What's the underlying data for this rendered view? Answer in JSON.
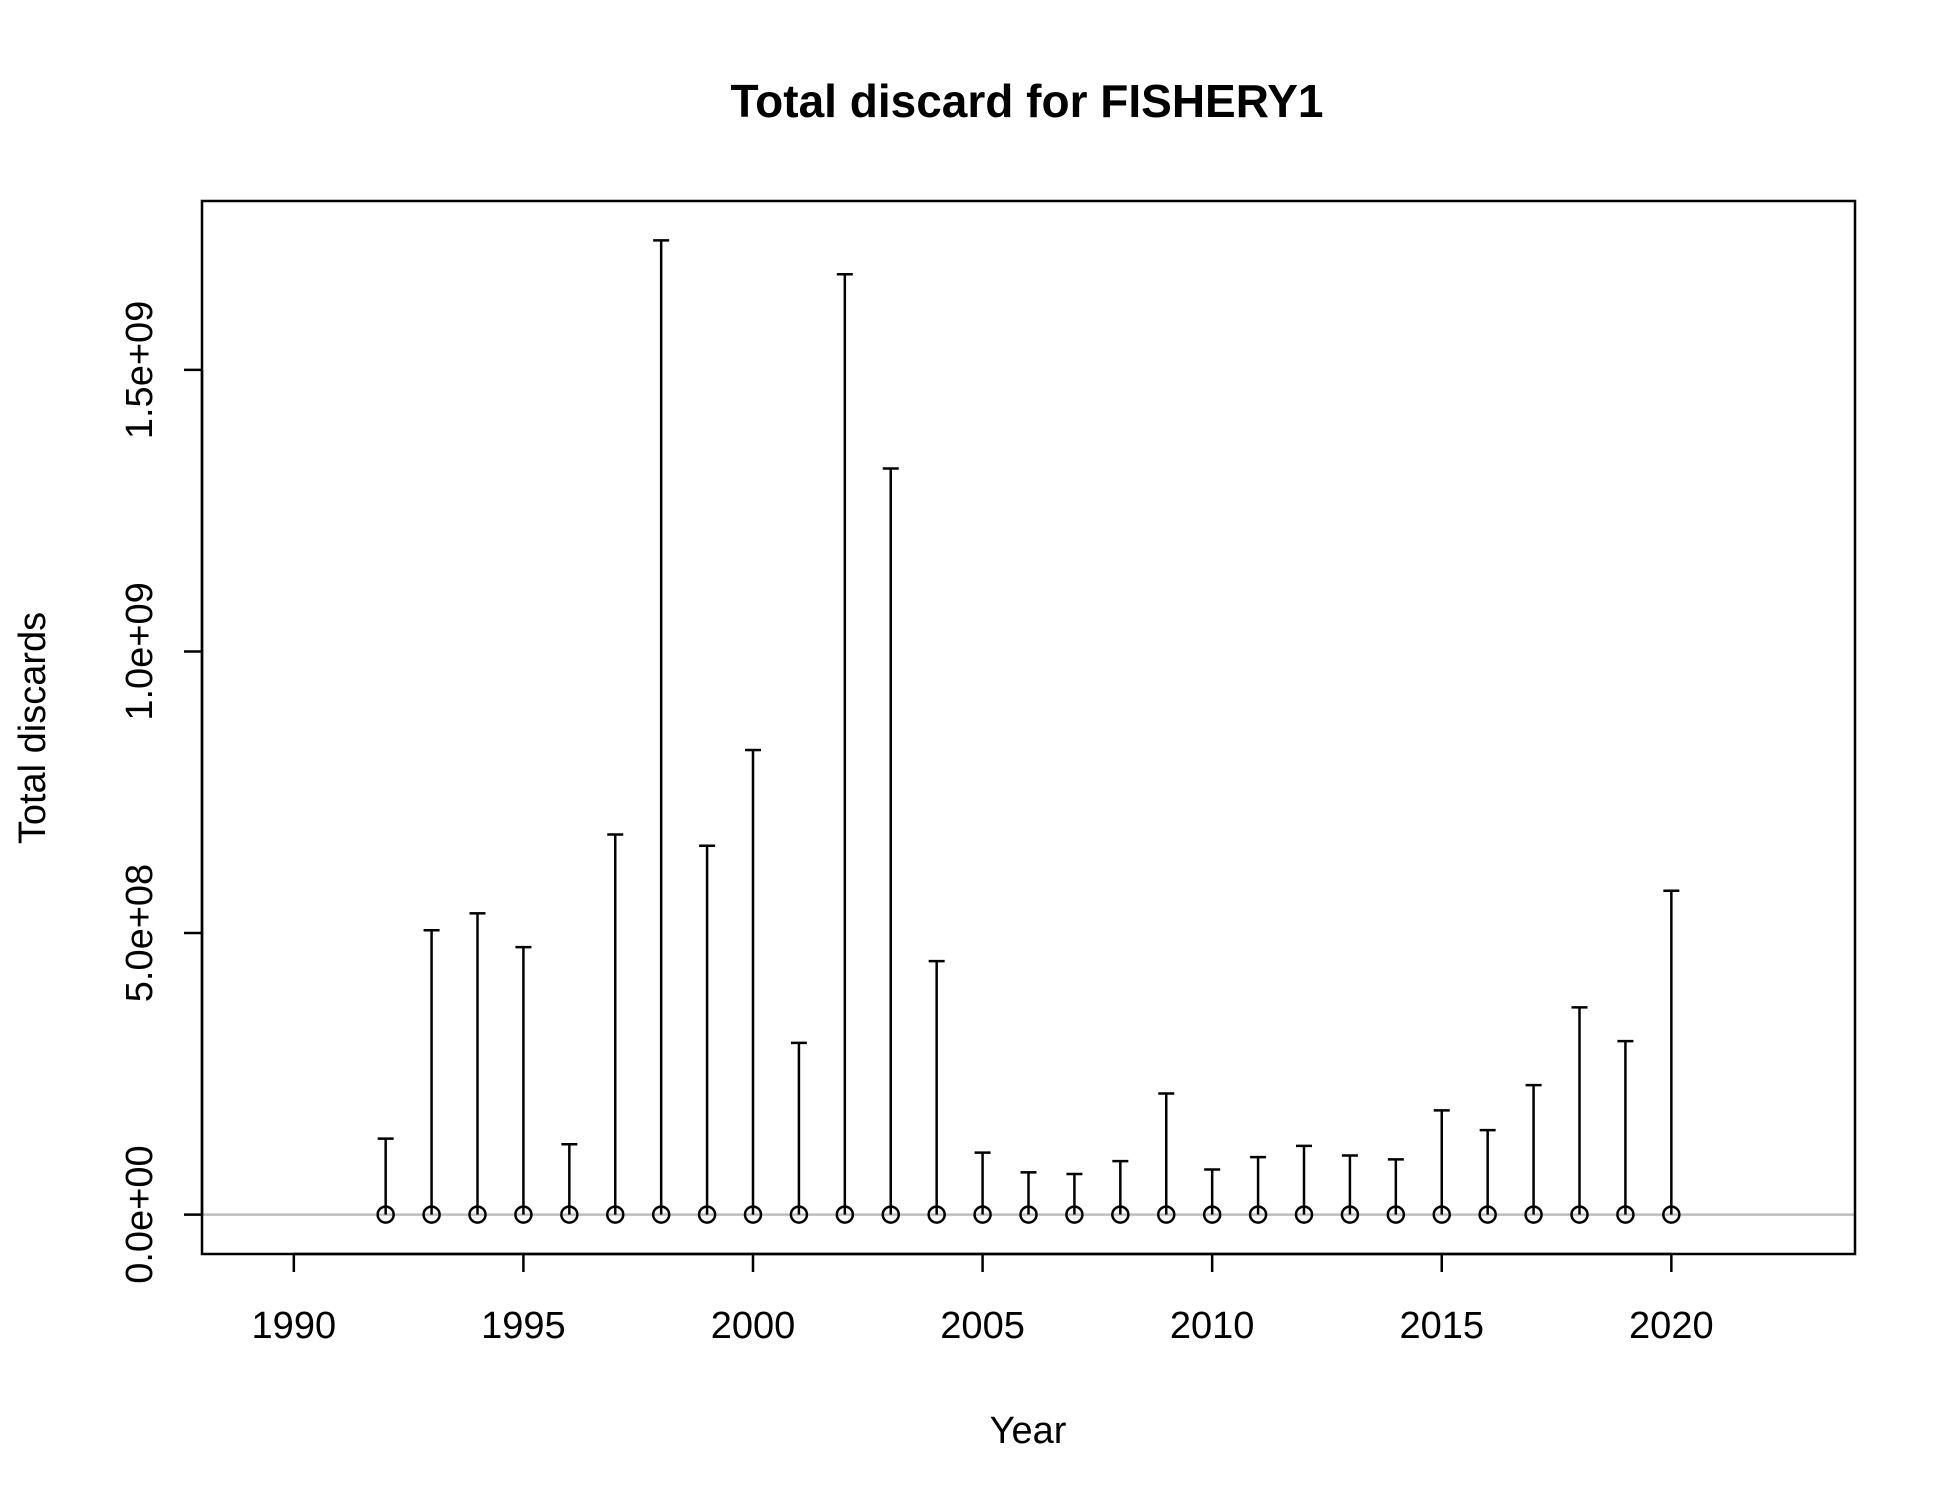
{
  "chart_data": {
    "type": "errorbar",
    "title": "Total discard for FISHERY1",
    "xlabel": "Year",
    "ylabel": "Total discards",
    "xlim": [
      1988,
      2024
    ],
    "ylim": [
      -70000000,
      1800000000
    ],
    "x_ticks": [
      1990,
      1995,
      2000,
      2005,
      2010,
      2015,
      2020
    ],
    "x_tick_labels": [
      "1990",
      "1995",
      "2000",
      "2005",
      "2010",
      "2015",
      "2020"
    ],
    "y_ticks": [
      0,
      500000000,
      1000000000,
      1500000000
    ],
    "y_tick_labels": [
      "0.0e+00",
      "5.0e+08",
      "1.0e+09",
      "1.5e+09"
    ],
    "reference_line": {
      "y": 0,
      "color": "#bebebe"
    },
    "grid": false,
    "legend": "none",
    "series": [
      {
        "x": [
          1992,
          1993,
          1994,
          1995,
          1996,
          1997,
          1998,
          1999,
          2000,
          2001,
          2002,
          2003,
          2004,
          2005,
          2006,
          2007,
          2008,
          2009,
          2010,
          2011,
          2012,
          2013,
          2014,
          2015,
          2016,
          2017,
          2018,
          2019,
          2020
        ],
        "values": [
          0,
          0,
          0,
          0,
          0,
          0,
          0,
          0,
          0,
          0,
          0,
          0,
          0,
          0,
          0,
          0,
          0,
          0,
          0,
          0,
          0,
          0,
          0,
          0,
          0,
          0,
          0,
          0,
          0
        ],
        "upper": [
          135000000,
          505000000,
          535000000,
          475000000,
          125000000,
          675000000,
          1730000000,
          655000000,
          825000000,
          305000000,
          1670000000,
          1325000000,
          450000000,
          110000000,
          75000000,
          72000000,
          95000000,
          215000000,
          80000000,
          102000000,
          122000000,
          105000000,
          98000000,
          185000000,
          150000000,
          230000000,
          368000000,
          308000000,
          575000000
        ],
        "lower": [
          0,
          0,
          0,
          0,
          0,
          0,
          0,
          0,
          0,
          0,
          0,
          0,
          0,
          0,
          0,
          0,
          0,
          0,
          0,
          0,
          0,
          0,
          0,
          0,
          0,
          0,
          0,
          0,
          0
        ]
      }
    ],
    "colors": {
      "bars": "#000000",
      "points": "#000000",
      "reference_line": "#bebebe",
      "frame": "#000000"
    }
  }
}
